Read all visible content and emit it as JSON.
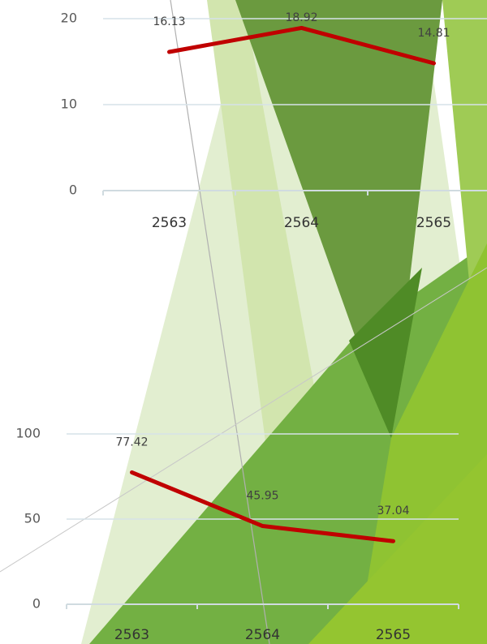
{
  "chart_data": [
    {
      "type": "line",
      "categories": [
        "2563",
        "2564",
        "2565"
      ],
      "values": [
        16.13,
        18.92,
        14.81
      ],
      "color": "#c00000",
      "ylim": [
        0,
        20
      ],
      "yticks": [
        0,
        10,
        20
      ],
      "grid": true
    },
    {
      "type": "line",
      "categories": [
        "2563",
        "2564",
        "2565"
      ],
      "values": [
        77.42,
        45.95,
        37.04
      ],
      "color": "#c00000",
      "ylim": [
        0,
        100
      ],
      "yticks": [
        0,
        50,
        100
      ],
      "grid": true
    }
  ]
}
